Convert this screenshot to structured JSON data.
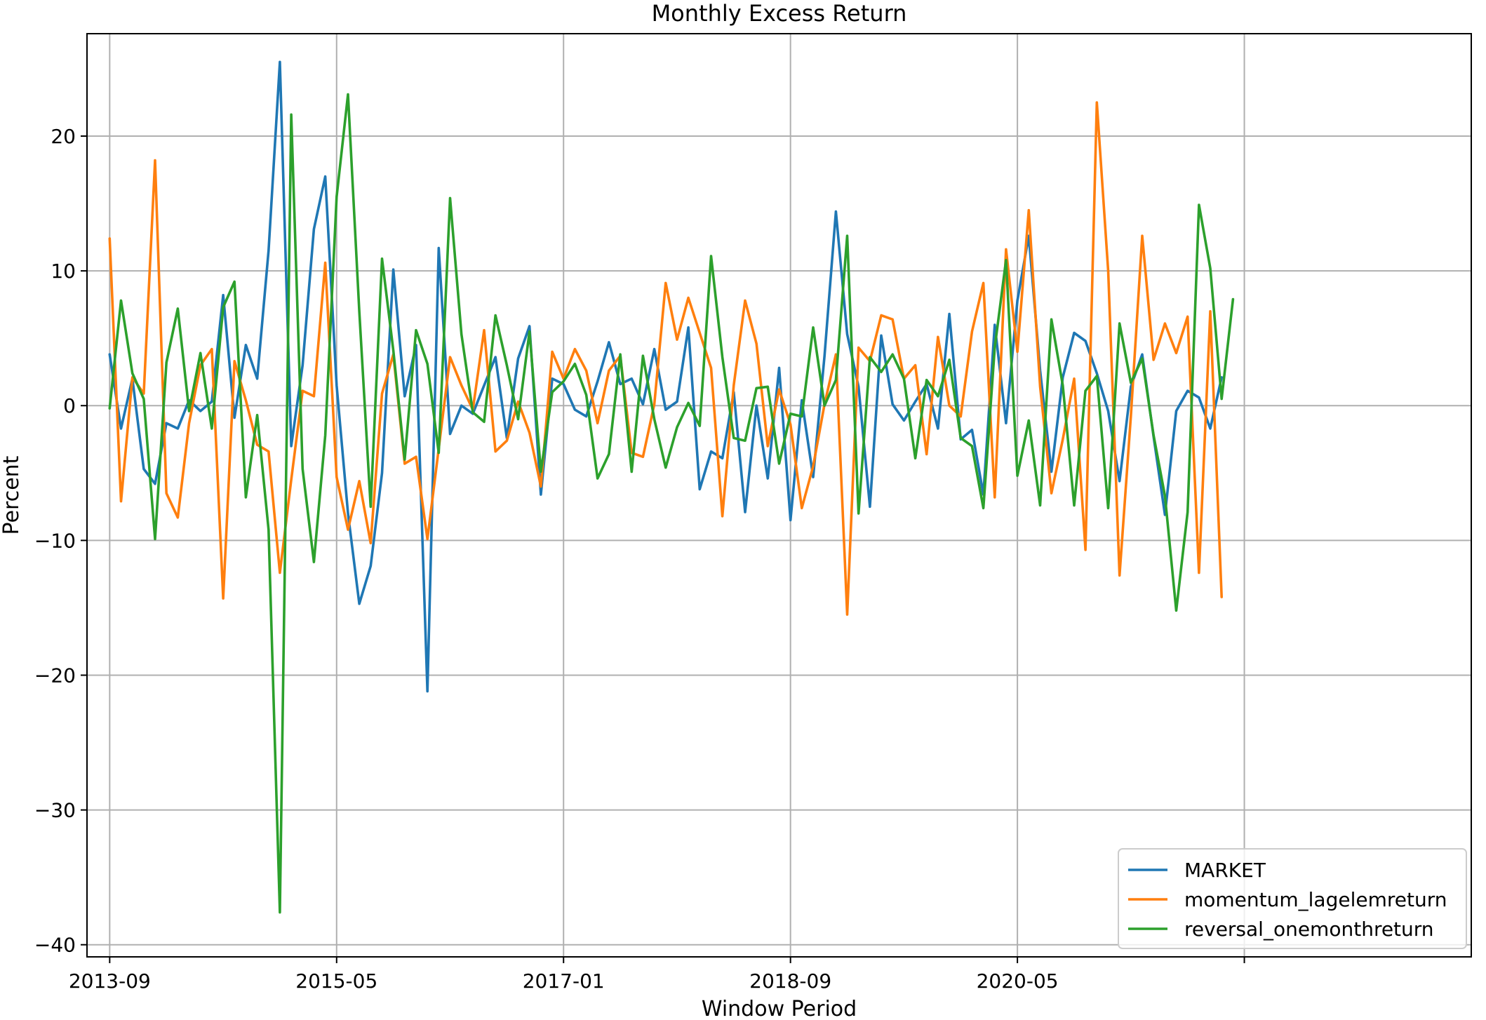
{
  "chart_data": {
    "type": "line",
    "title": "Monthly Excess Return",
    "xlabel": "Window Period",
    "ylabel": "Percent",
    "x_start": "2013-09",
    "xlim": [
      "2013-07",
      "2023-09"
    ],
    "ylim": [
      -40.9,
      27.6
    ],
    "x_ticks": [
      "2013-09",
      "2015-05",
      "2017-01",
      "2018-09",
      "2020-05",
      "2022-01"
    ],
    "x_tick_labels": [
      "2013-09",
      "2015-05",
      "2017-01",
      "2018-09",
      "2020-05",
      ""
    ],
    "y_ticks": [
      -40,
      -30,
      -20,
      -10,
      0,
      10,
      20
    ],
    "y_tick_labels": [
      "−40",
      "−30",
      "−20",
      "−10",
      "0",
      "10",
      "20"
    ],
    "grid": true,
    "legend_position": "lower-right",
    "series": [
      {
        "name": "MARKET",
        "color": "#1f77b4",
        "values": [
          3.8,
          -1.7,
          2.0,
          -4.7,
          -5.8,
          -1.3,
          -1.7,
          0.4,
          -0.4,
          0.3,
          8.2,
          -0.9,
          4.5,
          2.0,
          11.5,
          25.5,
          -3.0,
          3.0,
          13.1,
          17.0,
          1.5,
          -8.0,
          -14.7,
          -11.9,
          -5.0,
          10.1,
          0.7,
          4.5,
          -21.2,
          11.7,
          -2.1,
          0.0,
          -0.6,
          1.5,
          3.6,
          -2.4,
          3.5,
          5.9,
          -6.6,
          2.0,
          1.6,
          -0.3,
          -0.8,
          1.8,
          4.7,
          1.6,
          2.0,
          0.1,
          4.2,
          -0.3,
          0.3,
          5.8,
          -6.2,
          -3.4,
          -3.9,
          1.0,
          -7.9,
          0.0,
          -5.4,
          2.8,
          -8.5,
          0.4,
          -5.3,
          3.7,
          14.4,
          5.3,
          1.4,
          -7.5,
          5.2,
          0.1,
          -1.1,
          0.3,
          1.6,
          -1.7,
          6.8,
          -2.5,
          -1.8,
          -6.6,
          6.0,
          -1.3,
          7.8,
          12.6,
          2.6,
          -4.9,
          2.1,
          5.4,
          4.8,
          2.4,
          -0.4,
          -5.6,
          1.4,
          3.8,
          -2.3,
          -8.1,
          -0.4,
          1.1,
          0.6,
          -1.7,
          2.1
        ]
      },
      {
        "name": "momentum_lagelemreturn",
        "color": "#ff7f0e",
        "values": [
          12.4,
          -7.1,
          2.1,
          0.9,
          18.2,
          -6.5,
          -8.3,
          -1.3,
          3.0,
          4.2,
          -14.3,
          3.3,
          0.4,
          -2.9,
          -3.4,
          -12.4,
          -5.5,
          1.1,
          0.7,
          10.6,
          -5.3,
          -9.2,
          -5.6,
          -10.2,
          0.9,
          3.8,
          -4.3,
          -3.8,
          -9.9,
          -3.2,
          3.6,
          1.5,
          -0.3,
          5.6,
          -3.4,
          -2.6,
          0.3,
          -2.0,
          -6.0,
          4.0,
          2.0,
          4.2,
          2.6,
          -1.3,
          2.6,
          3.7,
          -3.5,
          -3.8,
          0.1,
          9.1,
          4.9,
          8.0,
          5.4,
          2.8,
          -8.2,
          1.5,
          7.8,
          4.6,
          -3.0,
          1.2,
          -1.4,
          -7.6,
          -4.5,
          0.1,
          3.8,
          -15.5,
          4.3,
          3.3,
          6.7,
          6.4,
          2.0,
          3.0,
          -3.6,
          5.1,
          0.0,
          -0.8,
          5.5,
          9.1,
          -6.8,
          11.6,
          4.0,
          14.5,
          1.4,
          -6.5,
          -2.5,
          2.0,
          -10.7,
          22.5,
          10.0,
          -12.6,
          -0.8,
          12.6,
          3.4,
          6.1,
          3.9,
          6.6,
          -12.4,
          7.0,
          -14.2
        ]
      },
      {
        "name": "reversal_onemonthreturn",
        "color": "#2ca02c",
        "values": [
          -0.2,
          7.8,
          2.4,
          0.5,
          -9.9,
          3.2,
          7.2,
          -0.4,
          3.9,
          -1.7,
          7.3,
          9.2,
          -6.8,
          -0.7,
          -9.2,
          -37.6,
          21.6,
          -4.7,
          -11.6,
          -2.2,
          15.5,
          23.1,
          7.0,
          -7.5,
          10.9,
          4.1,
          -4.0,
          5.6,
          3.1,
          -3.5,
          15.4,
          5.3,
          -0.5,
          -1.2,
          6.7,
          3.0,
          -1.0,
          5.5,
          -4.9,
          1.0,
          1.8,
          3.1,
          0.8,
          -5.4,
          -3.6,
          3.8,
          -4.9,
          3.7,
          -1.0,
          -4.6,
          -1.6,
          0.2,
          -1.5,
          11.1,
          3.6,
          -2.4,
          -2.6,
          1.3,
          1.4,
          -4.3,
          -0.6,
          -0.8,
          5.8,
          0.0,
          1.9,
          12.6,
          -8.0,
          3.6,
          2.5,
          3.8,
          2.0,
          -3.9,
          1.9,
          0.7,
          3.4,
          -2.4,
          -3.0,
          -7.6,
          4.3,
          10.8,
          -5.2,
          -1.1,
          -7.4,
          6.4,
          1.5,
          -7.4,
          1.1,
          2.2,
          -7.6,
          6.1,
          1.7,
          3.5,
          -2.2,
          -6.7,
          -15.2,
          -7.9,
          14.9,
          10.2,
          0.5,
          7.9
        ]
      }
    ]
  }
}
